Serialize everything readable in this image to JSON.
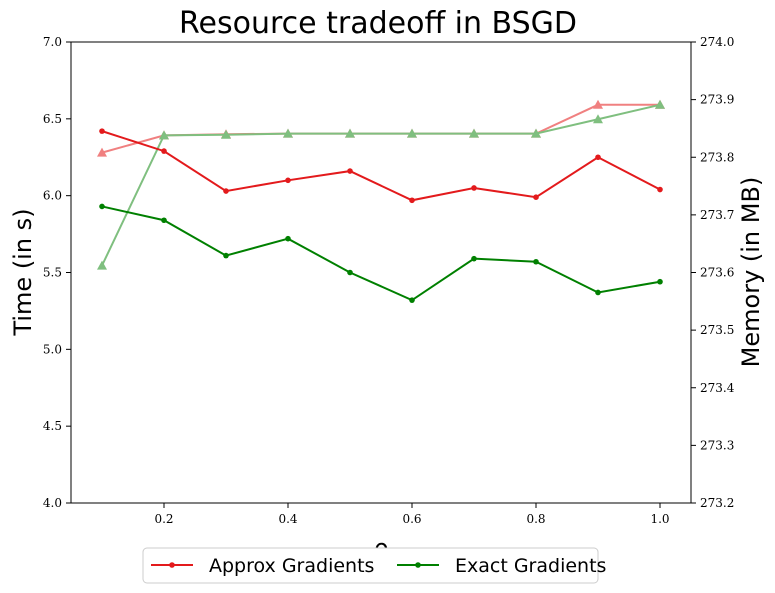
{
  "chart_data": {
    "type": "line",
    "title": "Resource tradeoff in BSGD",
    "xlabel": "ρ",
    "ylabel_left": "Time (in s)",
    "ylabel_right": "Memory (in MB)",
    "x": [
      0.1,
      0.2,
      0.3,
      0.4,
      0.5,
      0.6,
      0.7,
      0.8,
      0.9,
      1.0
    ],
    "xlim": [
      0.05,
      1.05
    ],
    "ylim_left": [
      4.0,
      7.0
    ],
    "ylim_right": [
      273.2,
      274.0
    ],
    "x_ticks": [
      "0.2",
      "0.4",
      "0.6",
      "0.8",
      "1.0"
    ],
    "y_ticks_left": [
      "4.0",
      "4.5",
      "5.0",
      "5.5",
      "6.0",
      "6.5",
      "7.0"
    ],
    "y_ticks_right": [
      "273.2",
      "273.3",
      "273.4",
      "273.5",
      "273.6",
      "273.7",
      "273.8",
      "273.9",
      "274.0"
    ],
    "grid": false,
    "legend_position": "bottom-center",
    "time_series": [
      {
        "name": "Approx Gradients",
        "color": "#e31a1c",
        "axis": "left",
        "values": [
          6.42,
          6.29,
          6.03,
          6.1,
          6.16,
          5.97,
          6.05,
          5.99,
          6.25,
          6.04
        ]
      },
      {
        "name": "Exact Gradients",
        "color": "#008000",
        "axis": "left",
        "values": [
          5.93,
          5.84,
          5.61,
          5.72,
          5.5,
          5.32,
          5.59,
          5.57,
          5.37,
          5.44
        ]
      }
    ],
    "memory_series": [
      {
        "color": "#f08080",
        "axis": "right",
        "values": [
          273.808,
          273.838,
          273.84,
          273.841,
          273.841,
          273.841,
          273.841,
          273.841,
          273.891,
          273.891
        ]
      },
      {
        "color": "#7fbf7f",
        "axis": "right",
        "values": [
          273.612,
          273.838,
          273.839,
          273.841,
          273.841,
          273.841,
          273.841,
          273.841,
          273.866,
          273.891
        ]
      }
    ]
  }
}
